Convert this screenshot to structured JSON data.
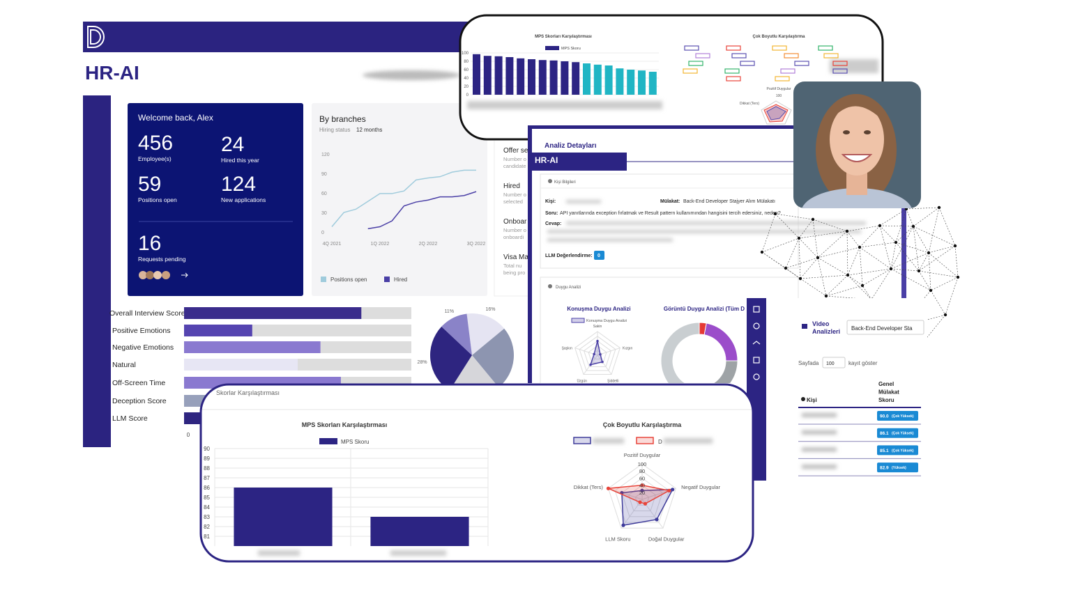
{
  "brand": {
    "name": "HR-AI"
  },
  "welcome_card": {
    "greeting": "Welcome back, Alex",
    "stats": [
      {
        "value": 456,
        "label": "Employee(s)"
      },
      {
        "value": 24,
        "label": "Hired this year"
      },
      {
        "value": 59,
        "label": "Positions open"
      },
      {
        "value": 124,
        "label": "New applications"
      }
    ],
    "requests": {
      "value": 16,
      "label": "Requests pending"
    }
  },
  "branches_card": {
    "title": "By branches",
    "subtitle": "Hiring status",
    "period": "12 months",
    "chart": {
      "type": "line",
      "categories": [
        "4Q 2021",
        null,
        null,
        null,
        "1Q 2022",
        null,
        null,
        null,
        "2Q 2022",
        null,
        null,
        null,
        "3Q 2022"
      ],
      "ylim": [
        0,
        120
      ],
      "yticks": [
        0,
        30,
        60,
        90,
        120
      ],
      "series": [
        {
          "name": "Positions open",
          "color": "#9fcbdc",
          "values": [
            8,
            30,
            35,
            47,
            59,
            59,
            63,
            80,
            83,
            85,
            92,
            95,
            95
          ]
        },
        {
          "name": "Hired",
          "color": "#4a3fa6",
          "values": [
            null,
            null,
            null,
            5,
            8,
            17,
            40,
            46,
            49,
            54,
            54,
            56,
            62
          ]
        }
      ]
    }
  },
  "pipeline_card": {
    "items": [
      {
        "title": "Offer se",
        "lines": [
          "Number o",
          "candidate"
        ]
      },
      {
        "title": "Hired",
        "lines": [
          "Number o",
          "selected"
        ]
      },
      {
        "title": "Onboar",
        "lines": [
          "Number o",
          "onboardi"
        ]
      },
      {
        "title": "Visa Ma",
        "lines": [
          "Total nu",
          "being pro"
        ]
      }
    ]
  },
  "score_bars": {
    "type": "bar",
    "orientation": "horizontal",
    "categories": [
      "Overall Interview Score",
      "Positive Emotions",
      "Negative Emotions",
      "Natural",
      "Off-Screen Time",
      "Deception Score",
      "LLM Score"
    ],
    "values": [
      78,
      30,
      60,
      50,
      69,
      10,
      20
    ],
    "colors": [
      "#3a2c8c",
      "#5544b0",
      "#8a79d0",
      "#e7e6f4",
      "#8a79d0",
      "#97a0bb",
      "#2e2580"
    ],
    "track_color": "#dddddd",
    "xlim": [
      0,
      100
    ],
    "xticks": [
      0
    ]
  },
  "score_pie": {
    "type": "pie",
    "values": [
      16,
      25,
      20,
      28,
      11
    ],
    "value_labels": [
      "16%",
      null,
      null,
      "28%",
      "11%"
    ],
    "colors": [
      "#e5e4f2",
      "#8d95b0",
      "#d6d6da",
      "#2e2580",
      "#8a83c8"
    ]
  },
  "top_panel": {
    "bar_chart": {
      "type": "bar",
      "title": "MPS Skorları Karşılaştırması",
      "legend": {
        "name": "MPS Skoru",
        "color": "#2c2483"
      },
      "values": [
        97,
        93,
        92,
        90,
        87,
        85,
        83,
        82,
        80,
        78,
        75,
        72,
        70,
        63,
        60,
        58,
        55
      ],
      "colors": [
        "#2c2483",
        "#2c2483",
        "#2c2483",
        "#2c2483",
        "#2c2483",
        "#2c2483",
        "#2c2483",
        "#2c2483",
        "#2c2483",
        "#2c2483",
        "#20b5c4",
        "#20b5c4",
        "#20b5c4",
        "#20b5c4",
        "#20b5c4",
        "#20b5c4",
        "#20b5c4"
      ],
      "ylim": [
        0,
        100
      ],
      "yticks": [
        0,
        20,
        40,
        60,
        80,
        100
      ],
      "grid": true
    },
    "radar_title": "Çok Boyutlu Karşılaştırma",
    "radar_top": "Pozitif Duygular",
    "radar_tick": 100,
    "radar_left": "Dikkat (Ters)"
  },
  "analysis_panel": {
    "title": "Analiz Detayları",
    "brand": "HR-AI",
    "person_section": "Kişi Bilgileri",
    "person_label": "Kişi:",
    "interview_label": "Mülakat:",
    "interview": "Back-End Developer Stajyer Alım Mülakatı",
    "question_label": "Soru:",
    "question": "API yanıtlarında exception fırlatmak ve Result pattern kullanımından hangisini tercih edersiniz, neden?",
    "answer_label": "Cevap:",
    "llm_label": "LLM Değerlendirme:",
    "llm_score": 0,
    "emotion_section": "Duygu Analizi",
    "speech_chart": {
      "type": "radar",
      "title": "Konuşma Duygu Analizi",
      "axes": [
        "Sakin",
        "Kızgın",
        "Şiddetli",
        "Üzgün",
        "Şaşkın"
      ],
      "rlim": [
        0,
        100
      ],
      "series": [
        {
          "name": "Konuşma Duygu Analizi",
          "color": "#4a3fa6",
          "values": [
            60,
            12,
            35,
            50,
            15
          ]
        }
      ]
    },
    "image_chart": {
      "type": "donut",
      "title": "Görüntü Duygu Analizi (Tüm D",
      "values": [
        3,
        22,
        20,
        55
      ],
      "colors": [
        "#e53935",
        "#9b4dca",
        "#9ea3a6",
        "#c9ced1"
      ]
    }
  },
  "video_panel": {
    "title_lines": [
      "Video",
      "Analizleri"
    ],
    "search": "Back-End Developer Sta",
    "page_size_prefix": "Sayfada",
    "page_size": 100,
    "page_size_suffix": "kayıt göster",
    "columns": {
      "person": "Kişi",
      "score_lines": [
        "Genel",
        "Mülakat",
        "Skoru"
      ]
    },
    "rows": [
      {
        "score": "90.0",
        "level": "(Çok Yüksek)"
      },
      {
        "score": "86.1",
        "level": "(Çok Yüksek)"
      },
      {
        "score": "85.1",
        "level": "(Çok Yüksek)"
      },
      {
        "score": "82.9",
        "level": "(Yüksek)"
      }
    ]
  },
  "bottom_panel": {
    "section": "Skorlar Karşılaştırması",
    "bar_chart": {
      "type": "bar",
      "title": "MPS Skorları Karşılaştırması",
      "series": [
        {
          "name": "MPS Skoru",
          "color": "#2c2483",
          "values": [
            86,
            83
          ]
        }
      ],
      "ylim": [
        80,
        90
      ],
      "yticks": [
        81,
        82,
        83,
        84,
        85,
        86,
        87,
        88,
        89,
        90
      ],
      "grid": true
    },
    "radar_chart": {
      "type": "radar",
      "title": "Çok Boyutlu Karşılaştırma",
      "axes": [
        "Pozitif Duygular",
        "Negatif Duygular",
        "Doğal Duygular",
        "LLM Skoru",
        "Dikkat (Ters)"
      ],
      "rlim": [
        0,
        100
      ],
      "rticks": [
        20,
        40,
        60,
        80,
        100
      ],
      "series": [
        {
          "color": "#3d3a9a",
          "values": [
            25,
            90,
            70,
            90,
            60
          ]
        },
        {
          "name": "D",
          "color": "#e8443a",
          "values": [
            40,
            80,
            15,
            10,
            100
          ]
        }
      ]
    }
  }
}
